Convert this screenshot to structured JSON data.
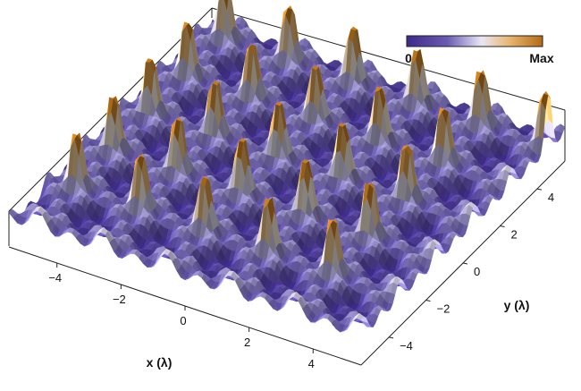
{
  "chart_data": {
    "type": "surface",
    "description_free": "",
    "xlabel": "x (λ)",
    "ylabel": "y (λ)",
    "x_ticks": [
      "−4",
      "−2",
      "0",
      "2",
      "4"
    ],
    "x_tick_values": [
      -4,
      -2,
      0,
      2,
      4
    ],
    "y_ticks": [
      "−4",
      "−2",
      "0",
      "2",
      "4"
    ],
    "y_tick_values": [
      -4,
      -2,
      0,
      2,
      4
    ],
    "xlim": [
      -5.5,
      5.5
    ],
    "ylim": [
      -5.5,
      5.5
    ],
    "colorbar": {
      "min_label": "0",
      "max_label": "Max"
    },
    "colormap": [
      "#3d2a8c",
      "#6a5bb2",
      "#b3aedc",
      "#f4efe9",
      "#e8b873",
      "#c97d1f"
    ],
    "lattice_period": 2.0,
    "lattice_peaks": [
      [
        -4.6,
        4.6
      ],
      [
        -2.6,
        4.6
      ],
      [
        -0.6,
        4.6
      ],
      [
        1.4,
        4.6
      ],
      [
        3.4,
        4.6
      ],
      [
        5.4,
        4.6
      ],
      [
        -4.6,
        2.6
      ],
      [
        -2.6,
        2.6
      ],
      [
        -0.6,
        2.6
      ],
      [
        1.4,
        2.6
      ],
      [
        3.4,
        2.6
      ],
      [
        -4.6,
        0.6
      ],
      [
        -2.6,
        0.6
      ],
      [
        -0.6,
        0.6
      ],
      [
        1.4,
        0.6
      ],
      [
        3.4,
        0.6
      ],
      [
        -4.6,
        -1.4
      ],
      [
        -2.6,
        -1.4
      ],
      [
        -0.6,
        -1.4
      ],
      [
        1.4,
        -1.4
      ],
      [
        3.4,
        -1.4
      ],
      [
        -4.6,
        -3.4
      ],
      [
        -2.6,
        -3.4
      ],
      [
        -0.6,
        -3.4
      ],
      [
        1.4,
        -3.4
      ],
      [
        3.4,
        -3.4
      ]
    ]
  }
}
